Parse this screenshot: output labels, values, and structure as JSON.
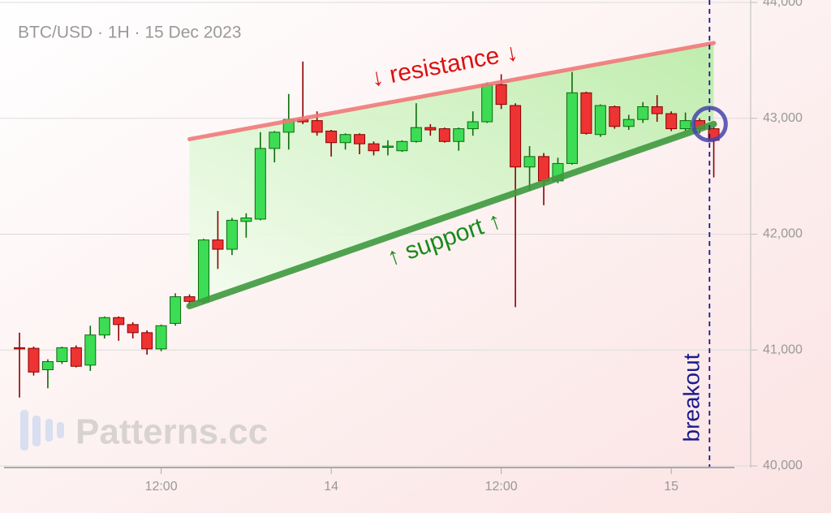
{
  "chart_data": {
    "type": "candlestick",
    "title": "BTC/USD · 1H · 15 Dec 2023",
    "watermark": "Patterns.cc",
    "categories": [
      null,
      null,
      null,
      null,
      null,
      null,
      null,
      null,
      null,
      null,
      "12:00",
      null,
      null,
      null,
      null,
      null,
      null,
      null,
      null,
      null,
      null,
      null,
      "14",
      null,
      null,
      null,
      null,
      null,
      null,
      null,
      null,
      null,
      null,
      null,
      "12:00",
      null,
      null,
      null,
      null,
      null,
      null,
      null,
      null,
      null,
      null,
      null,
      "15",
      null,
      null,
      null
    ],
    "open": [
      41020,
      41015,
      40830,
      40900,
      41020,
      40870,
      41130,
      41280,
      41220,
      41150,
      41010,
      41230,
      41460,
      41420,
      41950,
      41870,
      42110,
      42130,
      42740,
      42880,
      42990,
      42980,
      42890,
      42790,
      42860,
      42780,
      42750,
      42720,
      42800,
      42920,
      42910,
      42800,
      42910,
      42970,
      43290,
      43110,
      42580,
      42670,
      42460,
      42610,
      43220,
      42860,
      43100,
      42930,
      42990,
      43100,
      43040,
      42910,
      42980,
      42910
    ],
    "high": [
      41150,
      41030,
      40920,
      41030,
      41040,
      41210,
      41290,
      41290,
      41240,
      41170,
      41220,
      41490,
      41480,
      41960,
      42200,
      42140,
      42180,
      42880,
      42890,
      43210,
      43490,
      43060,
      42900,
      42870,
      42870,
      42800,
      42810,
      42810,
      43130,
      42950,
      42920,
      42920,
      43060,
      43310,
      43380,
      43130,
      42760,
      42700,
      42660,
      43400,
      43230,
      43120,
      43110,
      43030,
      43140,
      43200,
      43060,
      43050,
      43000,
      42930
    ],
    "low": [
      40590,
      40780,
      40670,
      40880,
      40850,
      40820,
      41100,
      41080,
      41100,
      40960,
      40990,
      41210,
      41380,
      41400,
      41700,
      41820,
      41970,
      42120,
      42620,
      42730,
      42950,
      42850,
      42670,
      42730,
      42690,
      42680,
      42680,
      42710,
      42790,
      42850,
      42790,
      42720,
      42850,
      42960,
      43080,
      41370,
      42380,
      42250,
      42440,
      42600,
      42860,
      42840,
      42910,
      42900,
      42960,
      42970,
      42890,
      42890,
      42870,
      42490
    ],
    "close": [
      41010,
      40810,
      40900,
      41020,
      40860,
      41130,
      41280,
      41220,
      41150,
      41010,
      41210,
      41460,
      41420,
      41950,
      41870,
      42120,
      42140,
      42740,
      42880,
      42990,
      42970,
      42880,
      42790,
      42860,
      42780,
      42720,
      42760,
      42800,
      42920,
      42900,
      42800,
      42910,
      42970,
      43290,
      43120,
      42580,
      42670,
      42460,
      42610,
      43220,
      42870,
      43110,
      42930,
      42990,
      43100,
      43040,
      42910,
      42980,
      42910,
      42810
    ],
    "up_color": "#3ddc55",
    "down_color": "#ee3333",
    "ylim": [
      40000,
      44000
    ],
    "yticks": [
      {
        "value": 40000,
        "label": "40,000"
      },
      {
        "value": 41000,
        "label": "41,000"
      },
      {
        "value": 42000,
        "label": "42,000"
      },
      {
        "value": 43000,
        "label": "43,000"
      },
      {
        "value": 44000,
        "label": "44,000"
      }
    ],
    "grid": true,
    "resistance": {
      "label": "↓ resistance ↓",
      "color": "#f07a7a",
      "start": [
        12,
        42820
      ],
      "end": [
        49,
        43650
      ]
    },
    "support": {
      "label": "↑ support ↑",
      "color": "#3f9a3f",
      "start": [
        12,
        41380
      ],
      "end": [
        49,
        42950
      ]
    },
    "breakout": {
      "label": "breakout",
      "color": "#1a1a8c",
      "x": 48.7,
      "y": 42950
    }
  }
}
